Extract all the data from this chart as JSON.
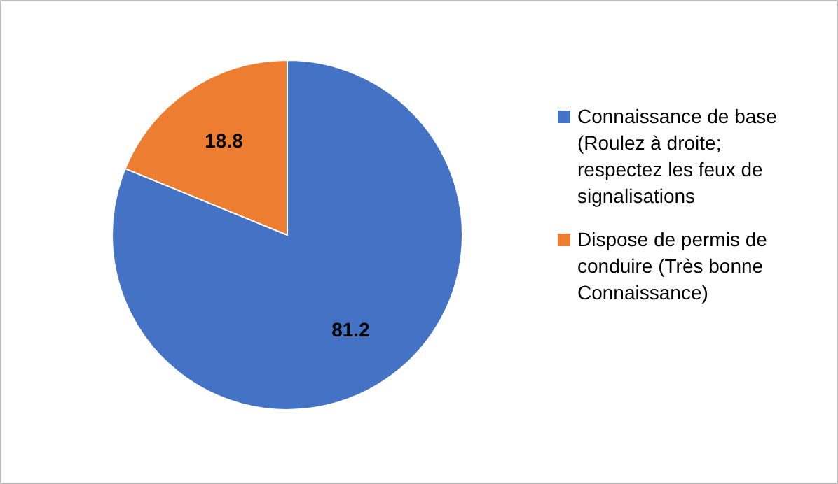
{
  "chart_data": {
    "type": "pie",
    "categories": [
      "Connaissance de base (Roulez à droite; respectez les feux de signalisations",
      "Dispose de permis de conduire (Très bonne Connaissance)"
    ],
    "values": [
      81.2,
      18.8
    ],
    "colors": [
      "#4472c4",
      "#ed7d31"
    ],
    "data_labels": true,
    "legend": "right"
  }
}
